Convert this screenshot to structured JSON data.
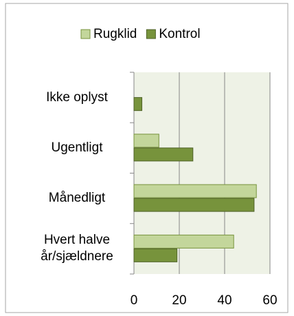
{
  "chart_data": {
    "type": "bar",
    "orientation": "horizontal",
    "categories": [
      "Ikke oplyst",
      "Ugentligt",
      "Månedligt",
      "Hvert halve år/sjældnere"
    ],
    "series": [
      {
        "name": "Rugklid",
        "color": "#c3d69b",
        "values": [
          0,
          11,
          54,
          44
        ]
      },
      {
        "name": "Kontrol",
        "color": "#77933c",
        "values": [
          3.5,
          26,
          53,
          19
        ]
      }
    ],
    "xlim": [
      0,
      60
    ],
    "xticks": [
      0,
      20,
      40,
      60
    ],
    "grid": true,
    "legend": "top"
  }
}
